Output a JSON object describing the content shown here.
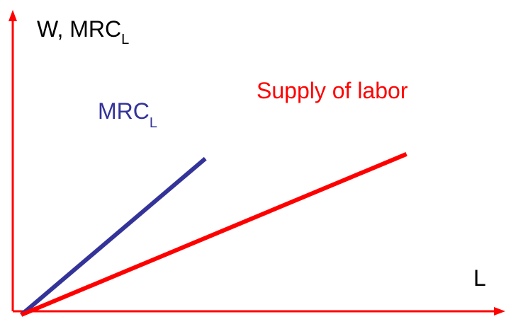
{
  "chart_data": {
    "type": "line",
    "ylabel_main": "W, MRC",
    "ylabel_sub": "L",
    "xlabel": "L",
    "xlim": [
      0,
      100
    ],
    "ylim": [
      0,
      100
    ],
    "grid": false,
    "axis_color": "#ff0000",
    "series": [
      {
        "name_main": "MRC",
        "name_sub": "L",
        "color": "#333399",
        "points": [
          [
            0,
            0
          ],
          [
            43,
            69
          ]
        ]
      },
      {
        "name": "Supply of labor",
        "color": "#ff0000",
        "points": [
          [
            0,
            0
          ],
          [
            90,
            71
          ]
        ]
      }
    ]
  }
}
